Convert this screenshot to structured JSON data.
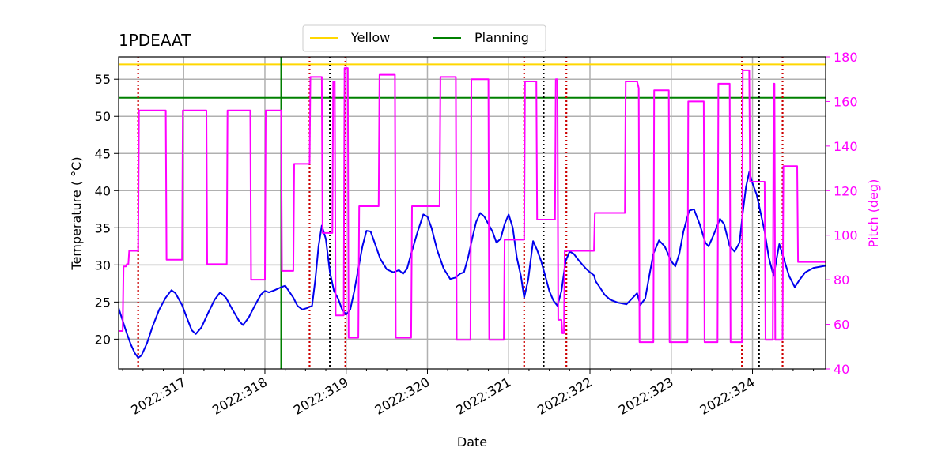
{
  "chart_data": {
    "type": "line",
    "title": "1PDEAAT",
    "xlabel": "Date",
    "ylabel": "Temperature ($^\\circ$C)",
    "ylabel_display": "Temperature ( °C)",
    "y2label": "Pitch (deg)",
    "xlim": [
      316.2,
      324.9
    ],
    "ylim": [
      16,
      58
    ],
    "y2lim": [
      40,
      180
    ],
    "x_ticks": [
      {
        "value": 317,
        "label": "2022:317"
      },
      {
        "value": 318,
        "label": "2022:318"
      },
      {
        "value": 319,
        "label": "2022:319"
      },
      {
        "value": 320,
        "label": "2022:320"
      },
      {
        "value": 321,
        "label": "2022:321"
      },
      {
        "value": 322,
        "label": "2022:322"
      },
      {
        "value": 323,
        "label": "2022:323"
      },
      {
        "value": 324,
        "label": "2022:324"
      }
    ],
    "y_ticks": [
      20,
      25,
      30,
      35,
      40,
      45,
      50,
      55
    ],
    "y2_ticks": [
      40,
      60,
      80,
      100,
      120,
      140,
      160,
      180
    ],
    "grid": true,
    "legend": {
      "placement": "top-center",
      "entries": [
        {
          "label": "Yellow",
          "color": "#ffd700"
        },
        {
          "label": "Planning",
          "color": "#008000"
        }
      ]
    },
    "hlines": [
      {
        "name": "Yellow",
        "y": 57.0,
        "color": "#ffd700"
      },
      {
        "name": "Planning",
        "y": 52.5,
        "color": "#008000"
      }
    ],
    "vlines": {
      "planning": {
        "x": [
          318.2
        ],
        "color": "#008000"
      },
      "red_dotted": {
        "x": [
          316.44,
          318.55,
          318.99,
          321.19,
          321.71,
          323.87,
          324.37
        ],
        "color": "#cc0000"
      },
      "black_dotted": {
        "x": [
          318.8,
          321.43,
          324.08
        ],
        "color": "#000000"
      }
    },
    "series": [
      {
        "name": "Temperature",
        "axis": "left",
        "color": "#0000ee",
        "points": [
          [
            316.2,
            24.2
          ],
          [
            316.25,
            22.5
          ],
          [
            316.3,
            20.8
          ],
          [
            316.35,
            19.3
          ],
          [
            316.4,
            18.1
          ],
          [
            316.44,
            17.5
          ],
          [
            316.48,
            17.8
          ],
          [
            316.55,
            19.5
          ],
          [
            316.62,
            21.8
          ],
          [
            316.7,
            24.0
          ],
          [
            316.78,
            25.6
          ],
          [
            316.85,
            26.6
          ],
          [
            316.9,
            26.2
          ],
          [
            316.98,
            24.6
          ],
          [
            317.05,
            22.6
          ],
          [
            317.1,
            21.2
          ],
          [
            317.15,
            20.7
          ],
          [
            317.22,
            21.6
          ],
          [
            317.3,
            23.5
          ],
          [
            317.38,
            25.3
          ],
          [
            317.45,
            26.3
          ],
          [
            317.52,
            25.6
          ],
          [
            317.6,
            24.0
          ],
          [
            317.68,
            22.5
          ],
          [
            317.73,
            21.9
          ],
          [
            317.8,
            22.9
          ],
          [
            317.88,
            24.6
          ],
          [
            317.95,
            26.0
          ],
          [
            318.0,
            26.5
          ],
          [
            318.05,
            26.3
          ],
          [
            318.12,
            26.6
          ],
          [
            318.2,
            27.0
          ],
          [
            318.25,
            27.2
          ],
          [
            318.3,
            26.4
          ],
          [
            318.35,
            25.6
          ],
          [
            318.4,
            24.5
          ],
          [
            318.46,
            24.0
          ],
          [
            318.52,
            24.2
          ],
          [
            318.58,
            24.5
          ],
          [
            318.62,
            28.0
          ],
          [
            318.66,
            32.5
          ],
          [
            318.7,
            35.3
          ],
          [
            318.75,
            33.5
          ],
          [
            318.8,
            29.0
          ],
          [
            318.85,
            26.5
          ],
          [
            318.9,
            25.5
          ],
          [
            318.95,
            24.0
          ],
          [
            319.0,
            23.3
          ],
          [
            319.05,
            24.0
          ],
          [
            319.1,
            26.5
          ],
          [
            319.15,
            29.5
          ],
          [
            319.2,
            32.5
          ],
          [
            319.25,
            34.6
          ],
          [
            319.3,
            34.5
          ],
          [
            319.35,
            33.0
          ],
          [
            319.42,
            30.8
          ],
          [
            319.5,
            29.4
          ],
          [
            319.58,
            29.0
          ],
          [
            319.65,
            29.3
          ],
          [
            319.7,
            28.8
          ],
          [
            319.75,
            29.5
          ],
          [
            319.8,
            31.5
          ],
          [
            319.88,
            34.5
          ],
          [
            319.95,
            36.8
          ],
          [
            320.0,
            36.5
          ],
          [
            320.05,
            35.0
          ],
          [
            320.12,
            32.0
          ],
          [
            320.2,
            29.5
          ],
          [
            320.28,
            28.1
          ],
          [
            320.35,
            28.3
          ],
          [
            320.4,
            28.8
          ],
          [
            320.45,
            29.0
          ],
          [
            320.5,
            31.0
          ],
          [
            320.55,
            33.5
          ],
          [
            320.6,
            35.8
          ],
          [
            320.65,
            37.0
          ],
          [
            320.7,
            36.5
          ],
          [
            320.75,
            35.5
          ],
          [
            320.8,
            34.5
          ],
          [
            320.85,
            33.0
          ],
          [
            320.9,
            33.5
          ],
          [
            320.95,
            35.5
          ],
          [
            321.0,
            36.8
          ],
          [
            321.05,
            35.0
          ],
          [
            321.1,
            31.0
          ],
          [
            321.15,
            28.5
          ],
          [
            321.19,
            25.6
          ],
          [
            321.24,
            28.0
          ],
          [
            321.3,
            33.2
          ],
          [
            321.35,
            32.0
          ],
          [
            321.4,
            30.5
          ],
          [
            321.45,
            28.5
          ],
          [
            321.5,
            26.5
          ],
          [
            321.55,
            25.2
          ],
          [
            321.6,
            24.5
          ],
          [
            321.65,
            26.5
          ],
          [
            321.7,
            30.5
          ],
          [
            321.75,
            31.8
          ],
          [
            321.8,
            31.5
          ],
          [
            321.87,
            30.5
          ],
          [
            321.95,
            29.5
          ],
          [
            322.0,
            29.0
          ],
          [
            322.05,
            28.6
          ],
          [
            322.07,
            27.8
          ],
          [
            322.12,
            27.0
          ],
          [
            322.18,
            26.0
          ],
          [
            322.25,
            25.3
          ],
          [
            322.35,
            24.9
          ],
          [
            322.45,
            24.7
          ],
          [
            322.52,
            25.5
          ],
          [
            322.58,
            26.2
          ],
          [
            322.62,
            24.6
          ],
          [
            322.68,
            25.5
          ],
          [
            322.73,
            28.5
          ],
          [
            322.78,
            31.5
          ],
          [
            322.85,
            33.3
          ],
          [
            322.92,
            32.5
          ],
          [
            323.0,
            30.5
          ],
          [
            323.05,
            29.8
          ],
          [
            323.1,
            31.5
          ],
          [
            323.15,
            34.5
          ],
          [
            323.22,
            37.3
          ],
          [
            323.28,
            37.5
          ],
          [
            323.35,
            35.5
          ],
          [
            323.42,
            33.0
          ],
          [
            323.46,
            32.5
          ],
          [
            323.52,
            34.0
          ],
          [
            323.6,
            36.2
          ],
          [
            323.65,
            35.5
          ],
          [
            323.72,
            32.5
          ],
          [
            323.78,
            31.8
          ],
          [
            323.84,
            33.0
          ],
          [
            323.88,
            37.0
          ],
          [
            323.92,
            40.5
          ],
          [
            323.96,
            42.5
          ],
          [
            324.0,
            41.0
          ],
          [
            324.05,
            39.5
          ],
          [
            324.1,
            37.0
          ],
          [
            324.15,
            34.5
          ],
          [
            324.2,
            31.0
          ],
          [
            324.26,
            28.5
          ],
          [
            324.3,
            31.0
          ],
          [
            324.33,
            32.8
          ],
          [
            324.38,
            31.0
          ],
          [
            324.45,
            28.5
          ],
          [
            324.52,
            27.0
          ],
          [
            324.58,
            28.0
          ],
          [
            324.65,
            29.0
          ],
          [
            324.75,
            29.6
          ],
          [
            324.9,
            29.9
          ]
        ]
      },
      {
        "name": "Pitch",
        "axis": "right",
        "color": "#ff00ff",
        "points": [
          [
            316.2,
            57
          ],
          [
            316.25,
            57
          ],
          [
            316.26,
            86
          ],
          [
            316.29,
            86
          ],
          [
            316.3,
            87
          ],
          [
            316.32,
            87
          ],
          [
            316.33,
            93
          ],
          [
            316.44,
            93
          ],
          [
            316.45,
            156
          ],
          [
            316.78,
            156
          ],
          [
            316.79,
            89
          ],
          [
            316.98,
            89
          ],
          [
            316.99,
            156
          ],
          [
            317.28,
            156
          ],
          [
            317.29,
            87
          ],
          [
            317.53,
            87
          ],
          [
            317.54,
            156
          ],
          [
            317.82,
            156
          ],
          [
            317.83,
            80
          ],
          [
            318.0,
            80
          ],
          [
            318.01,
            156
          ],
          [
            318.2,
            156
          ],
          [
            318.21,
            84
          ],
          [
            318.35,
            84
          ],
          [
            318.36,
            132
          ],
          [
            318.55,
            132
          ],
          [
            318.56,
            171
          ],
          [
            318.7,
            171
          ],
          [
            318.71,
            101
          ],
          [
            318.83,
            101
          ],
          [
            318.84,
            169
          ],
          [
            318.86,
            169
          ],
          [
            318.87,
            64
          ],
          [
            318.97,
            64
          ],
          [
            318.98,
            175
          ],
          [
            319.02,
            175
          ],
          [
            319.03,
            54
          ],
          [
            319.15,
            54
          ],
          [
            319.16,
            113
          ],
          [
            319.4,
            113
          ],
          [
            319.41,
            172
          ],
          [
            319.6,
            172
          ],
          [
            319.61,
            54
          ],
          [
            319.8,
            54
          ],
          [
            319.81,
            113
          ],
          [
            320.15,
            113
          ],
          [
            320.16,
            171
          ],
          [
            320.35,
            171
          ],
          [
            320.36,
            53
          ],
          [
            320.53,
            53
          ],
          [
            320.54,
            170
          ],
          [
            320.75,
            170
          ],
          [
            320.76,
            53
          ],
          [
            320.94,
            53
          ],
          [
            320.95,
            98
          ],
          [
            321.19,
            98
          ],
          [
            321.2,
            169
          ],
          [
            321.34,
            169
          ],
          [
            321.35,
            107
          ],
          [
            321.57,
            107
          ],
          [
            321.58,
            170
          ],
          [
            321.6,
            170
          ],
          [
            321.61,
            62
          ],
          [
            321.65,
            62
          ],
          [
            321.66,
            56
          ],
          [
            321.68,
            56
          ],
          [
            321.69,
            93
          ],
          [
            322.0,
            93
          ],
          [
            322.05,
            93
          ],
          [
            322.06,
            110
          ],
          [
            322.43,
            110
          ],
          [
            322.44,
            169
          ],
          [
            322.58,
            169
          ],
          [
            322.6,
            166
          ],
          [
            322.61,
            52
          ],
          [
            322.78,
            52
          ],
          [
            322.79,
            165
          ],
          [
            322.97,
            165
          ],
          [
            322.98,
            52
          ],
          [
            323.2,
            52
          ],
          [
            323.21,
            160
          ],
          [
            323.4,
            160
          ],
          [
            323.41,
            52
          ],
          [
            323.57,
            52
          ],
          [
            323.58,
            168
          ],
          [
            323.72,
            168
          ],
          [
            323.73,
            52
          ],
          [
            323.87,
            52
          ],
          [
            323.88,
            174
          ],
          [
            323.96,
            174
          ],
          [
            323.97,
            124
          ],
          [
            324.15,
            124
          ],
          [
            324.16,
            53
          ],
          [
            324.25,
            53
          ],
          [
            324.26,
            168
          ],
          [
            324.27,
            168
          ],
          [
            324.28,
            53
          ],
          [
            324.37,
            53
          ],
          [
            324.38,
            131
          ],
          [
            324.55,
            131
          ],
          [
            324.56,
            88
          ],
          [
            324.9,
            88
          ]
        ]
      }
    ]
  }
}
